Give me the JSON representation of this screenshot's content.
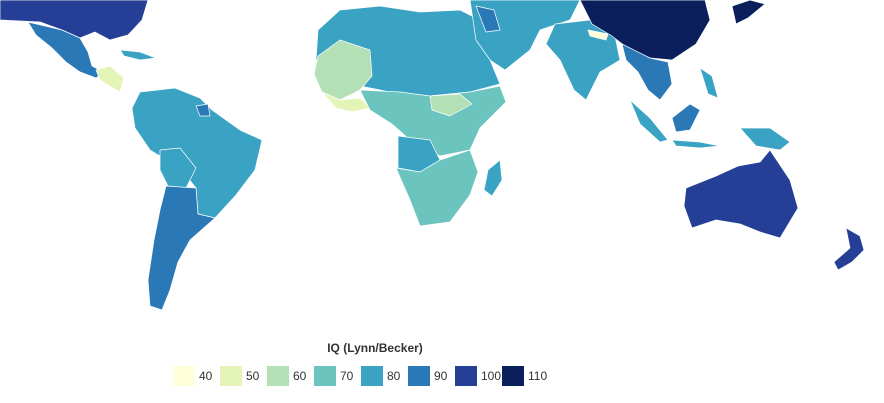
{
  "legend": {
    "title": "IQ (Lynn/Becker)",
    "items": [
      {
        "label": 40,
        "color": "#ffffd9"
      },
      {
        "label": 50,
        "color": "#e4f4b6"
      },
      {
        "label": 60,
        "color": "#b4e0b6"
      },
      {
        "label": 70,
        "color": "#6cc4be"
      },
      {
        "label": 80,
        "color": "#3aa3c4"
      },
      {
        "label": 90,
        "color": "#2b78b6"
      },
      {
        "label": 100,
        "color": "#243f95"
      },
      {
        "label": 110,
        "color": "#0b1f5c"
      }
    ]
  }
}
